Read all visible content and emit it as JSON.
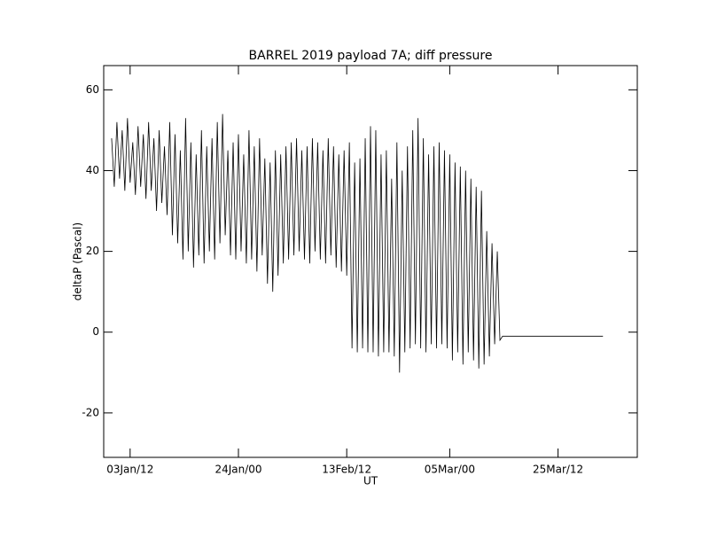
{
  "chart_data": {
    "type": "line",
    "title": "BARREL 2019 payload 7A; diff pressure",
    "x_label": "UT",
    "y_label": "deltaP (Pascal)",
    "xlim": [
      -2.5,
      98.5
    ],
    "xticks": [
      {
        "value": 2.5,
        "label": "03Jan/12"
      },
      {
        "value": 23,
        "label": "24Jan/00"
      },
      {
        "value": 43.5,
        "label": "13Feb/12"
      },
      {
        "value": 63,
        "label": "05Mar/00"
      },
      {
        "value": 83.5,
        "label": "25Mar/12"
      }
    ],
    "ylim": [
      -31,
      66
    ],
    "yticks": [
      -20,
      0,
      20,
      40,
      60
    ],
    "x": [
      -1,
      -0.5,
      0,
      0.5,
      1,
      1.5,
      2,
      2.5,
      3,
      3.5,
      4,
      4.5,
      5,
      5.5,
      6,
      6.5,
      7,
      7.5,
      8,
      8.5,
      9,
      9.5,
      10,
      10.5,
      11,
      11.5,
      12,
      12.5,
      13,
      13.5,
      14,
      14.5,
      15,
      15.5,
      16,
      16.5,
      17,
      17.5,
      18,
      18.5,
      19,
      19.5,
      20,
      20.5,
      21,
      21.5,
      22,
      22.5,
      23,
      23.5,
      24,
      24.5,
      25,
      25.5,
      26,
      26.5,
      27,
      27.5,
      28,
      28.5,
      29,
      29.5,
      30,
      30.5,
      31,
      31.5,
      32,
      32.5,
      33,
      33.5,
      34,
      34.5,
      35,
      35.5,
      36,
      36.5,
      37,
      37.5,
      38,
      38.5,
      39,
      39.5,
      40,
      40.5,
      41,
      41.5,
      42,
      42.5,
      43,
      43.5,
      44,
      44.5,
      45,
      45.5,
      46,
      46.5,
      47,
      47.5,
      48,
      48.5,
      49,
      49.5,
      50,
      50.5,
      51,
      51.5,
      52,
      52.5,
      53,
      53.5,
      54,
      54.5,
      55,
      55.5,
      56,
      56.5,
      57,
      57.5,
      58,
      58.5,
      59,
      59.5,
      60,
      60.5,
      61,
      61.5,
      62,
      62.5,
      63,
      63.5,
      64,
      64.5,
      65,
      65.5,
      66,
      66.5,
      67,
      67.5,
      68,
      68.5,
      69,
      69.5,
      70,
      70.5,
      71,
      71.5,
      72,
      72.5,
      73,
      92
    ],
    "series": [
      {
        "color": "#000000",
        "values": [
          48,
          36,
          52,
          38,
          50,
          35,
          53,
          37,
          47,
          34,
          51,
          36,
          49,
          33,
          52,
          35,
          48,
          30,
          50,
          32,
          46,
          29,
          52,
          24,
          49,
          22,
          45,
          18,
          53,
          20,
          47,
          16,
          44,
          19,
          50,
          17,
          46,
          20,
          48,
          18,
          52,
          22,
          54,
          24,
          45,
          19,
          47,
          18,
          49,
          20,
          44,
          17,
          50,
          18,
          46,
          15,
          48,
          19,
          43,
          12,
          42,
          10,
          45,
          14,
          44,
          17,
          46,
          18,
          47,
          19,
          48,
          20,
          45,
          18,
          46,
          17,
          48,
          20,
          47,
          18,
          45,
          17,
          48,
          19,
          46,
          16,
          44,
          15,
          45,
          14,
          47,
          -4,
          42,
          -5,
          43,
          -4,
          48,
          -5,
          51,
          -5,
          50,
          -6,
          44,
          -5,
          45,
          -5,
          38,
          -6,
          47,
          -10,
          40,
          -5,
          46,
          -4,
          50,
          -3,
          53,
          -4,
          48,
          -5,
          44,
          -3,
          46,
          -4,
          47,
          -3,
          45,
          -4,
          44,
          -7,
          42,
          -5,
          41,
          -8,
          40,
          -5,
          38,
          -7,
          36,
          -9,
          35,
          -8,
          25,
          -6,
          22,
          -3,
          20,
          -2,
          -1,
          -1
        ]
      }
    ]
  }
}
